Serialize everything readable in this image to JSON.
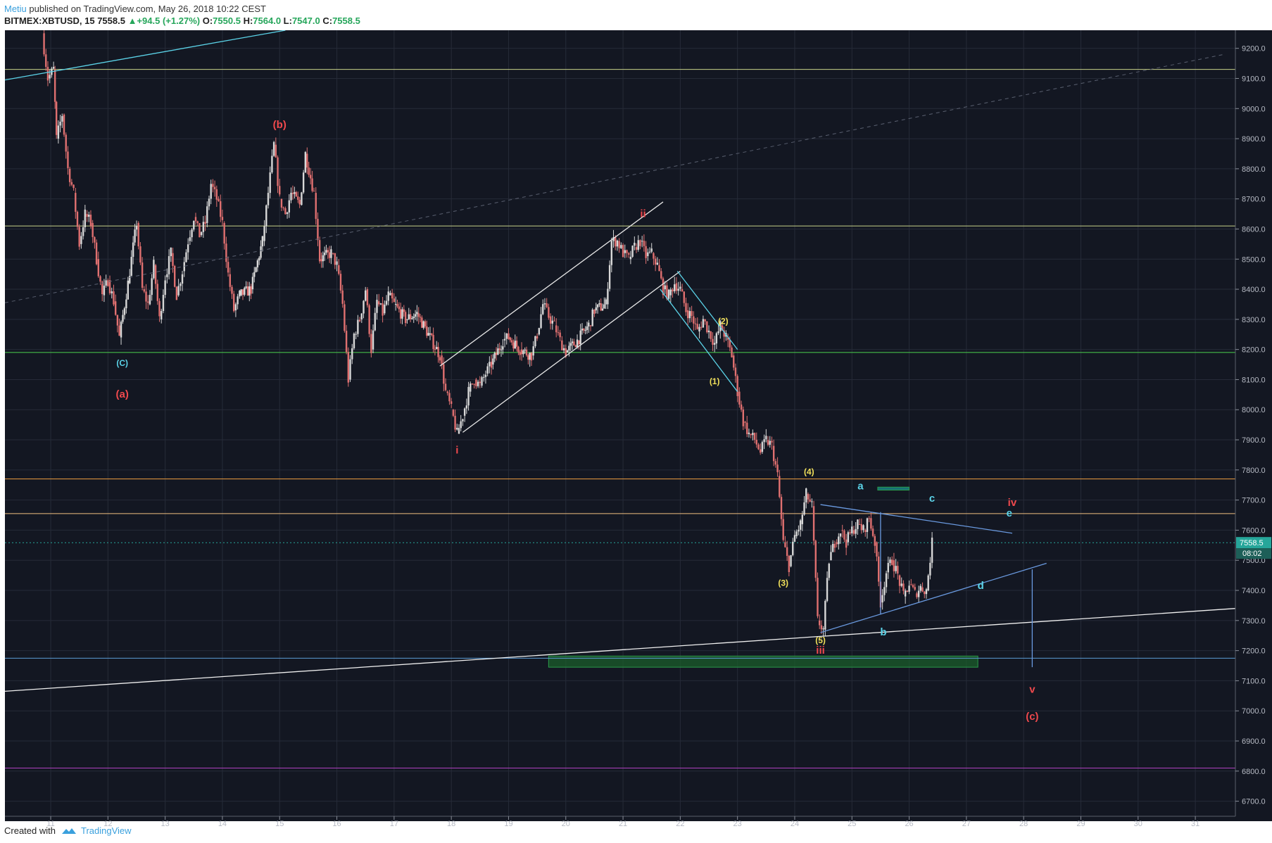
{
  "header": {
    "author": "Metiu",
    "published": "published on TradingView.com, May 26, 2018 10:22 CEST",
    "symbol": "BITMEX:XBTUSD, 15",
    "price": "7558.5",
    "change": "+94.5 (+1.27%)",
    "o_label": "O:",
    "o_value": "7550.5",
    "h_label": "H:",
    "h_value": "7564.0",
    "l_label": "L:",
    "l_value": "7547.0",
    "c_label": "C:",
    "c_value": "7558.5"
  },
  "footer": {
    "created_with": "Created with",
    "brand": "TradingView"
  },
  "colors": {
    "background": "#131722",
    "grid": "#262b38",
    "candle_up": "#d8d8d8",
    "candle_down": "#e07070",
    "wave_red": "#f0494d",
    "wave_yellow": "#f1e05a",
    "wave_cyan": "#5bd3e8",
    "accent_price": "#26a69a"
  },
  "chart_data": {
    "type": "candlestick",
    "y_ticks": [
      "9200.0",
      "9100.0",
      "9000.0",
      "8900.0",
      "8800.0",
      "8700.0",
      "8600.0",
      "8500.0",
      "8400.0",
      "8300.0",
      "8200.0",
      "8100.0",
      "8000.0",
      "7900.0",
      "7800.0",
      "7700.0",
      "7600.0",
      "7500.0",
      "7400.0",
      "7300.0",
      "7200.0",
      "7100.0",
      "7000.0",
      "6900.0",
      "6800.0",
      "6700.0"
    ],
    "x_ticks": [
      "11",
      "12",
      "13",
      "14",
      "15",
      "16",
      "17",
      "18",
      "19",
      "20",
      "21",
      "22",
      "23",
      "24",
      "25",
      "26",
      "27",
      "28",
      "29",
      "30",
      "31"
    ],
    "ylim": [
      6650,
      9260
    ],
    "xlim": [
      10.2,
      31.7
    ],
    "last_price": "7558.5",
    "countdown": "08:02",
    "horizontal_levels": [
      {
        "price": 9130,
        "color": "#c8d28a"
      },
      {
        "price": 8610,
        "color": "#c8d28a"
      },
      {
        "price": 8190,
        "color": "#4cd14c"
      },
      {
        "price": 7770,
        "color": "#f0a040"
      },
      {
        "price": 7655,
        "color": "#f0c080"
      },
      {
        "price": 7175,
        "color": "#5b9bd5"
      },
      {
        "price": 6810,
        "color": "#b040c0"
      }
    ],
    "price_path": [
      [
        10.85,
        9250
      ],
      [
        10.95,
        9100
      ],
      [
        11.05,
        9130
      ],
      [
        11.1,
        8900
      ],
      [
        11.2,
        8980
      ],
      [
        11.3,
        8800
      ],
      [
        11.4,
        8720
      ],
      [
        11.5,
        8550
      ],
      [
        11.6,
        8650
      ],
      [
        11.7,
        8620
      ],
      [
        11.8,
        8500
      ],
      [
        11.9,
        8380
      ],
      [
        12.0,
        8430
      ],
      [
        12.1,
        8360
      ],
      [
        12.2,
        8240
      ],
      [
        12.35,
        8420
      ],
      [
        12.5,
        8620
      ],
      [
        12.6,
        8400
      ],
      [
        12.7,
        8350
      ],
      [
        12.8,
        8480
      ],
      [
        12.9,
        8300
      ],
      [
        13.0,
        8440
      ],
      [
        13.1,
        8520
      ],
      [
        13.2,
        8380
      ],
      [
        13.3,
        8460
      ],
      [
        13.4,
        8560
      ],
      [
        13.5,
        8640
      ],
      [
        13.6,
        8580
      ],
      [
        13.7,
        8620
      ],
      [
        13.8,
        8750
      ],
      [
        13.9,
        8700
      ],
      [
        14.0,
        8620
      ],
      [
        14.1,
        8450
      ],
      [
        14.2,
        8330
      ],
      [
        14.3,
        8380
      ],
      [
        14.5,
        8400
      ],
      [
        14.7,
        8560
      ],
      [
        14.8,
        8720
      ],
      [
        14.9,
        8880
      ],
      [
        15.0,
        8700
      ],
      [
        15.1,
        8650
      ],
      [
        15.2,
        8720
      ],
      [
        15.35,
        8680
      ],
      [
        15.45,
        8850
      ],
      [
        15.6,
        8720
      ],
      [
        15.7,
        8500
      ],
      [
        15.9,
        8520
      ],
      [
        16.0,
        8480
      ],
      [
        16.1,
        8350
      ],
      [
        16.2,
        8100
      ],
      [
        16.3,
        8250
      ],
      [
        16.4,
        8300
      ],
      [
        16.5,
        8400
      ],
      [
        16.6,
        8200
      ],
      [
        16.7,
        8360
      ],
      [
        16.8,
        8320
      ],
      [
        16.9,
        8380
      ],
      [
        17.0,
        8350
      ],
      [
        17.2,
        8300
      ],
      [
        17.4,
        8320
      ],
      [
        17.6,
        8250
      ],
      [
        17.8,
        8180
      ],
      [
        17.9,
        8060
      ],
      [
        18.0,
        8000
      ],
      [
        18.1,
        7920
      ],
      [
        18.2,
        7980
      ],
      [
        18.3,
        8060
      ],
      [
        18.4,
        8100
      ],
      [
        18.5,
        8080
      ],
      [
        18.6,
        8120
      ],
      [
        18.7,
        8150
      ],
      [
        18.9,
        8230
      ],
      [
        19.0,
        8240
      ],
      [
        19.2,
        8200
      ],
      [
        19.4,
        8180
      ],
      [
        19.5,
        8250
      ],
      [
        19.6,
        8350
      ],
      [
        19.7,
        8310
      ],
      [
        19.8,
        8280
      ],
      [
        19.9,
        8230
      ],
      [
        20.0,
        8190
      ],
      [
        20.2,
        8230
      ],
      [
        20.4,
        8280
      ],
      [
        20.5,
        8330
      ],
      [
        20.7,
        8350
      ],
      [
        20.8,
        8560
      ],
      [
        20.9,
        8560
      ],
      [
        21.0,
        8520
      ],
      [
        21.1,
        8500
      ],
      [
        21.2,
        8540
      ],
      [
        21.3,
        8560
      ],
      [
        21.4,
        8510
      ],
      [
        21.5,
        8520
      ],
      [
        21.6,
        8480
      ],
      [
        21.7,
        8400
      ],
      [
        21.8,
        8380
      ],
      [
        21.9,
        8420
      ],
      [
        22.0,
        8400
      ],
      [
        22.1,
        8330
      ],
      [
        22.2,
        8310
      ],
      [
        22.3,
        8260
      ],
      [
        22.4,
        8300
      ],
      [
        22.5,
        8260
      ],
      [
        22.6,
        8220
      ],
      [
        22.7,
        8280
      ],
      [
        22.8,
        8240
      ],
      [
        22.9,
        8180
      ],
      [
        23.0,
        8060
      ],
      [
        23.1,
        7960
      ],
      [
        23.2,
        7920
      ],
      [
        23.3,
        7900
      ],
      [
        23.4,
        7860
      ],
      [
        23.5,
        7900
      ],
      [
        23.6,
        7880
      ],
      [
        23.7,
        7780
      ],
      [
        23.8,
        7560
      ],
      [
        23.9,
        7480
      ],
      [
        24.0,
        7580
      ],
      [
        24.1,
        7620
      ],
      [
        24.2,
        7720
      ],
      [
        24.3,
        7680
      ],
      [
        24.4,
        7300
      ],
      [
        24.5,
        7270
      ],
      [
        24.6,
        7500
      ],
      [
        24.7,
        7560
      ],
      [
        24.8,
        7600
      ],
      [
        24.9,
        7560
      ],
      [
        25.0,
        7600
      ],
      [
        25.1,
        7620
      ],
      [
        25.2,
        7600
      ],
      [
        25.3,
        7640
      ],
      [
        25.4,
        7560
      ],
      [
        25.5,
        7360
      ],
      [
        25.6,
        7460
      ],
      [
        25.7,
        7500
      ],
      [
        25.8,
        7450
      ],
      [
        25.9,
        7380
      ],
      [
        26.0,
        7420
      ],
      [
        26.1,
        7390
      ],
      [
        26.2,
        7410
      ],
      [
        26.3,
        7400
      ],
      [
        26.4,
        7558
      ]
    ],
    "trendlines": [
      {
        "from": [
          10.2,
          9095
        ],
        "to": [
          15.1,
          9260
        ],
        "color": "#5bd3e8",
        "dashed": false
      },
      {
        "from": [
          10.2,
          8355
        ],
        "to": [
          31.5,
          9180
        ],
        "color": "#5a6070",
        "dashed": true
      },
      {
        "from": [
          17.8,
          8145
        ],
        "to": [
          21.7,
          8690
        ],
        "color": "#e8e8e8",
        "dashed": false
      },
      {
        "from": [
          18.2,
          7925
        ],
        "to": [
          22.0,
          8460
        ],
        "color": "#e8e8e8",
        "dashed": false
      },
      {
        "from": [
          21.95,
          8460
        ],
        "to": [
          23.0,
          8200
        ],
        "color": "#5bd3e8",
        "dashed": false
      },
      {
        "from": [
          21.65,
          8400
        ],
        "to": [
          23.0,
          8060
        ],
        "color": "#5bd3e8",
        "dashed": false
      },
      {
        "from": [
          24.45,
          7685
        ],
        "to": [
          27.8,
          7590
        ],
        "color": "#6a9ae0",
        "dashed": false
      },
      {
        "from": [
          24.45,
          7260
        ],
        "to": [
          28.4,
          7490
        ],
        "color": "#6a9ae0",
        "dashed": false
      },
      {
        "from": [
          10.2,
          7065
        ],
        "to": [
          31.7,
          7340
        ],
        "color": "#f0f0f0",
        "dashed": false
      },
      {
        "from": [
          25.5,
          7660
        ],
        "to": [
          25.5,
          7320
        ],
        "color": "#6a9ae0",
        "dashed": false
      },
      {
        "from": [
          28.15,
          7470
        ],
        "to": [
          28.15,
          7145
        ],
        "color": "#6a9ae0",
        "dashed": false
      }
    ],
    "zones": [
      {
        "x1": 19.7,
        "x2": 27.2,
        "y1": 7182,
        "y2": 7145,
        "color": "#1b5e2b"
      },
      {
        "x1": 25.45,
        "x2": 26.0,
        "y1": 7743,
        "y2": 7733,
        "color": "#1a8f8f"
      }
    ],
    "wave_labels": [
      {
        "text": "(b)",
        "x": 15.0,
        "y": 8935,
        "color": "red"
      },
      {
        "text": "(C)",
        "x": 12.25,
        "y": 8145,
        "color": "cyan"
      },
      {
        "text": "(a)",
        "x": 12.25,
        "y": 8040,
        "color": "red"
      },
      {
        "text": "ii",
        "x": 21.35,
        "y": 8640,
        "color": "red"
      },
      {
        "text": "i",
        "x": 18.1,
        "y": 7855,
        "color": "red"
      },
      {
        "text": "(2)",
        "x": 22.75,
        "y": 8285,
        "color": "yellow"
      },
      {
        "text": "(1)",
        "x": 22.6,
        "y": 8085,
        "color": "yellow"
      },
      {
        "text": "(4)",
        "x": 24.25,
        "y": 7785,
        "color": "yellow"
      },
      {
        "text": "(3)",
        "x": 23.8,
        "y": 7415,
        "color": "yellow"
      },
      {
        "text": "(5)",
        "x": 24.45,
        "y": 7225,
        "color": "yellow"
      },
      {
        "text": "iii",
        "x": 24.45,
        "y": 7190,
        "color": "red"
      },
      {
        "text": "a",
        "x": 25.15,
        "y": 7735,
        "color": "cyan"
      },
      {
        "text": "b",
        "x": 25.55,
        "y": 7250,
        "color": "cyan"
      },
      {
        "text": "c",
        "x": 26.4,
        "y": 7695,
        "color": "cyan"
      },
      {
        "text": "d",
        "x": 27.25,
        "y": 7405,
        "color": "cyan"
      },
      {
        "text": "e",
        "x": 27.75,
        "y": 7645,
        "color": "cyan"
      },
      {
        "text": "iv",
        "x": 27.8,
        "y": 7680,
        "color": "red"
      },
      {
        "text": "v",
        "x": 28.15,
        "y": 7060,
        "color": "red"
      },
      {
        "text": "(c)",
        "x": 28.15,
        "y": 6970,
        "color": "red"
      }
    ]
  }
}
